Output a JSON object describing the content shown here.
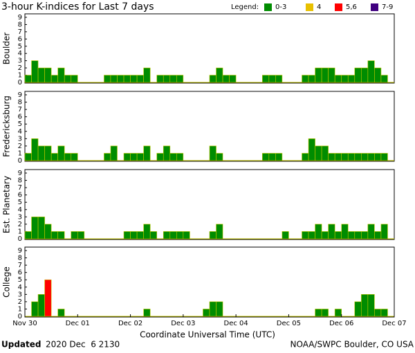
{
  "header": {
    "title": "3-hour K-indices for Last 7 days",
    "legend_title": "Legend:",
    "legend": [
      {
        "label": "0-3",
        "color": "#008c00"
      },
      {
        "label": "4",
        "color": "#e8c000"
      },
      {
        "label": "5,6",
        "color": "#ff0000"
      },
      {
        "label": "7-9",
        "color": "#400080"
      }
    ]
  },
  "chart_data": [
    {
      "type": "bar",
      "ylabel": "Boulder",
      "ylim": [
        0,
        9
      ],
      "yticks": [
        0,
        1,
        2,
        3,
        4,
        5,
        6,
        7,
        8,
        9
      ],
      "xlim": [
        0,
        7
      ],
      "values": [
        1,
        3,
        2,
        2,
        1,
        2,
        1,
        1,
        0,
        0,
        0,
        0,
        1,
        1,
        1,
        1,
        1,
        1,
        2,
        0,
        1,
        1,
        1,
        1,
        0,
        0,
        0,
        0,
        1,
        2,
        1,
        1,
        0,
        0,
        0,
        0,
        1,
        1,
        1,
        0,
        0,
        0,
        1,
        1,
        2,
        2,
        2,
        1,
        1,
        1,
        2,
        2,
        3,
        2,
        1,
        0
      ]
    },
    {
      "type": "bar",
      "ylabel": "Fredericksburg",
      "ylim": [
        0,
        9
      ],
      "yticks": [
        0,
        1,
        2,
        3,
        4,
        5,
        6,
        7,
        8,
        9
      ],
      "xlim": [
        0,
        7
      ],
      "values": [
        1,
        3,
        2,
        2,
        1,
        2,
        1,
        1,
        0,
        0,
        0,
        0,
        1,
        2,
        0,
        1,
        1,
        1,
        2,
        0,
        1,
        2,
        1,
        1,
        0,
        0,
        0,
        0,
        2,
        1,
        0,
        0,
        0,
        0,
        0,
        0,
        1,
        1,
        1,
        0,
        0,
        0,
        1,
        3,
        2,
        2,
        1,
        1,
        1,
        1,
        1,
        1,
        1,
        1,
        1,
        0
      ]
    },
    {
      "type": "bar",
      "ylabel": "Est. Planetary",
      "ylim": [
        0,
        9
      ],
      "yticks": [
        0,
        1,
        2,
        3,
        4,
        5,
        6,
        7,
        8,
        9
      ],
      "xlim": [
        0,
        7
      ],
      "values": [
        1,
        3,
        3,
        2,
        1,
        1,
        0,
        1,
        1,
        0,
        0,
        0,
        0,
        0,
        0,
        1,
        1,
        1,
        2,
        1,
        0,
        1,
        1,
        1,
        1,
        0,
        0,
        0,
        1,
        2,
        0,
        0,
        0,
        0,
        0,
        0,
        0,
        0,
        0,
        1,
        0,
        0,
        1,
        1,
        2,
        1,
        2,
        1,
        2,
        1,
        1,
        1,
        2,
        1,
        2,
        0
      ]
    },
    {
      "type": "bar",
      "ylabel": "College",
      "ylim": [
        0,
        9
      ],
      "yticks": [
        0,
        1,
        2,
        3,
        4,
        5,
        6,
        7,
        8,
        9
      ],
      "xlim": [
        0,
        7
      ],
      "xticks": [
        {
          "value": 0,
          "label": "Nov 30"
        },
        {
          "value": 1,
          "label": "Dec 01"
        },
        {
          "value": 2,
          "label": "Dec 02"
        },
        {
          "value": 3,
          "label": "Dec 03"
        },
        {
          "value": 4,
          "label": "Dec 04"
        },
        {
          "value": 5,
          "label": "Dec 05"
        },
        {
          "value": 6,
          "label": "Dec 06"
        },
        {
          "value": 7,
          "label": "Dec 07"
        }
      ],
      "xlabel": "Coordinate Universal Time (UTC)",
      "values": [
        0,
        2,
        3,
        5,
        0,
        1,
        0,
        0,
        0,
        0,
        0,
        0,
        0,
        0,
        0,
        0,
        0,
        0,
        1,
        0,
        0,
        0,
        0,
        0,
        0,
        0,
        0,
        1,
        2,
        2,
        0,
        0,
        0,
        0,
        0,
        0,
        0,
        0,
        0,
        0,
        0,
        0,
        0,
        0,
        1,
        1,
        0,
        1,
        0,
        0,
        2,
        3,
        3,
        1,
        1,
        0
      ]
    }
  ],
  "footer": {
    "updated_label": "Updated",
    "updated": "2020 Dec  6 2130",
    "credit": "NOAA/SWPC Boulder, CO USA"
  }
}
